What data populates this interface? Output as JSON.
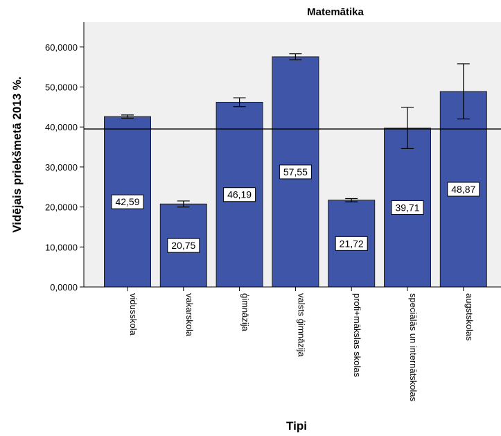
{
  "chart_data": {
    "type": "bar",
    "title": "Matemātika",
    "xlabel": "Tipi",
    "ylabel": "Vidējais priekšmetā 2013 %.",
    "categories": [
      "vidusskola",
      "vakarskola",
      "ģimnāzija",
      "valsts ģimnāzija",
      "profi+mākslas skolas",
      "speciālās un internātskolas",
      "augstskolas"
    ],
    "values": [
      42.59,
      20.75,
      46.19,
      57.55,
      21.72,
      39.71,
      48.87
    ],
    "value_labels": [
      "42,59",
      "20,75",
      "46,19",
      "57,55",
      "21,72",
      "39,71",
      "48,87"
    ],
    "error_low": [
      42.2,
      20.0,
      45.1,
      56.8,
      21.3,
      34.6,
      42.0
    ],
    "error_high": [
      43.0,
      21.5,
      47.3,
      58.3,
      22.1,
      44.9,
      55.8
    ],
    "reference_line": 39.5,
    "ylim": [
      0,
      65
    ],
    "yticks": [
      0,
      10,
      20,
      30,
      40,
      50,
      60
    ],
    "ytick_labels": [
      "0,0000",
      "10,0000",
      "20,0000",
      "30,0000",
      "40,0000",
      "50,0000",
      "60,0000"
    ],
    "grid": false,
    "colors": {
      "bar": "#3F56A8",
      "bar_outline": "#1E1E1E",
      "plot_background": "#F0F0F0",
      "reference_line": "#000000"
    }
  }
}
